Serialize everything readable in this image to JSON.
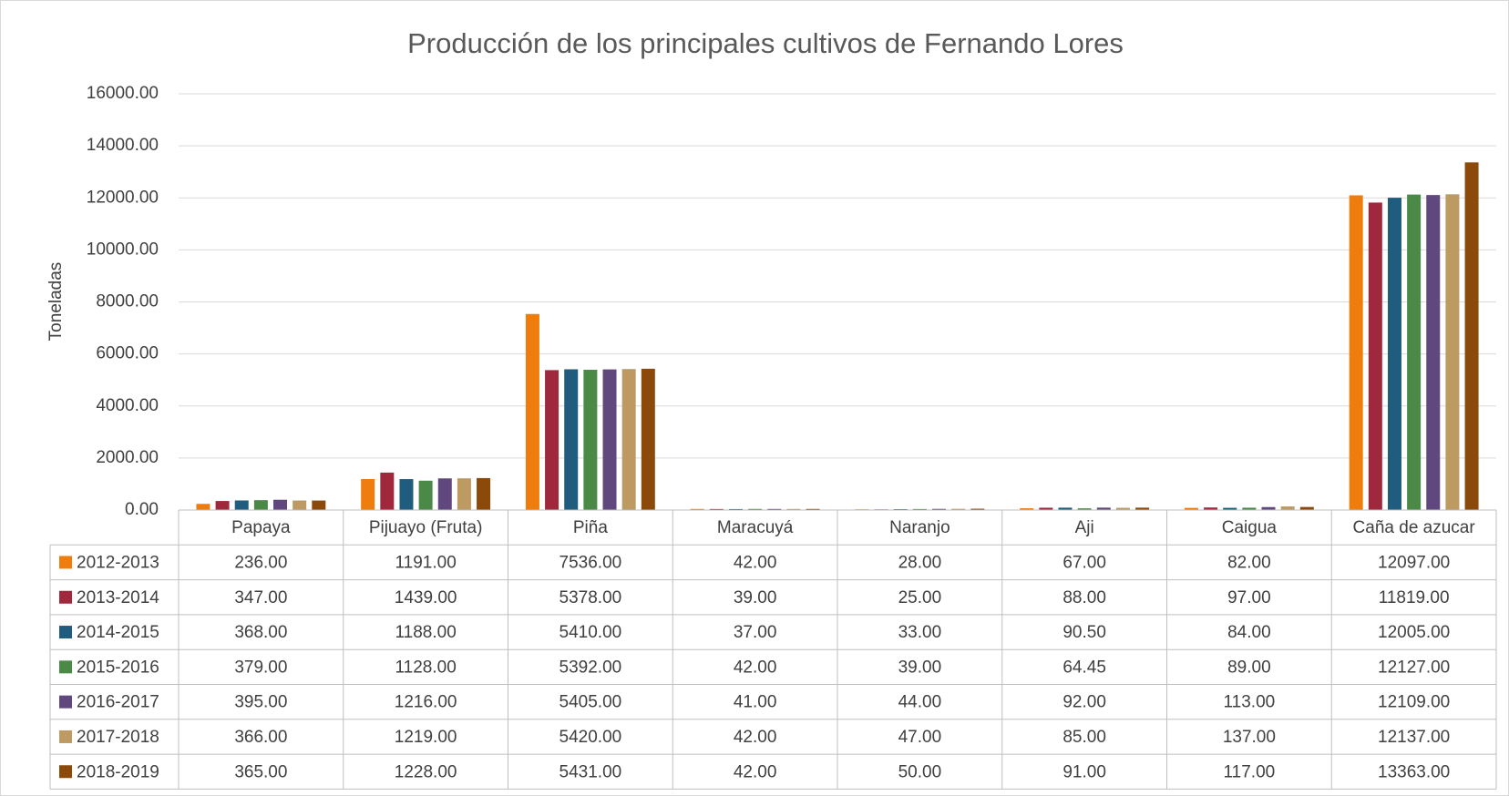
{
  "chart_data": {
    "type": "bar",
    "title": "Producción de los principales cultivos de Fernando Lores",
    "y_label": "Toneladas",
    "categories": [
      "Papaya",
      "Pijuayo (Fruta)",
      "Piña",
      "Maracuyá",
      "Naranjo",
      "Aji",
      "Caigua",
      "Caña de azucar"
    ],
    "ylim": [
      0,
      16000
    ],
    "yticks": [
      {
        "value": 0,
        "label": "0.00"
      },
      {
        "value": 2000,
        "label": "2000.00"
      },
      {
        "value": 4000,
        "label": "4000.00"
      },
      {
        "value": 6000,
        "label": "6000.00"
      },
      {
        "value": 8000,
        "label": "8000.00"
      },
      {
        "value": 10000,
        "label": "10000.00"
      },
      {
        "value": 12000,
        "label": "12000.00"
      },
      {
        "value": 14000,
        "label": "14000.00"
      },
      {
        "value": 16000,
        "label": "16000.00"
      }
    ],
    "grid": true,
    "series": [
      {
        "name": "2012-2013",
        "color": "#ee7d0e",
        "values": [
          236,
          1191,
          7536,
          42,
          28,
          67,
          82,
          12097
        ],
        "value_labels": [
          "236.00",
          "1191.00",
          "7536.00",
          "42.00",
          "28.00",
          "67.00",
          "82.00",
          "12097.00"
        ]
      },
      {
        "name": "2013-2014",
        "color": "#a0283c",
        "values": [
          347,
          1439,
          5378,
          39,
          25,
          88,
          97,
          11819
        ],
        "value_labels": [
          "347.00",
          "1439.00",
          "5378.00",
          "39.00",
          "25.00",
          "88.00",
          "97.00",
          "11819.00"
        ]
      },
      {
        "name": "2014-2015",
        "color": "#1f5c7e",
        "values": [
          368,
          1188,
          5410,
          37,
          33,
          90.5,
          84,
          12005
        ],
        "value_labels": [
          "368.00",
          "1188.00",
          "5410.00",
          "37.00",
          "33.00",
          "90.50",
          "84.00",
          "12005.00"
        ]
      },
      {
        "name": "2015-2016",
        "color": "#4a8a46",
        "values": [
          379,
          1128,
          5392,
          42,
          39,
          64.45,
          89,
          12127
        ],
        "value_labels": [
          "379.00",
          "1128.00",
          "5392.00",
          "42.00",
          "39.00",
          "64.45",
          "89.00",
          "12127.00"
        ]
      },
      {
        "name": "2016-2017",
        "color": "#60477d",
        "values": [
          395,
          1216,
          5405,
          41,
          44,
          92,
          113,
          12109
        ],
        "value_labels": [
          "395.00",
          "1216.00",
          "5405.00",
          "41.00",
          "44.00",
          "92.00",
          "113.00",
          "12109.00"
        ]
      },
      {
        "name": "2017-2018",
        "color": "#bc9a62",
        "values": [
          366,
          1219,
          5420,
          42,
          47,
          85,
          137,
          12137
        ],
        "value_labels": [
          "366.00",
          "1219.00",
          "5420.00",
          "42.00",
          "47.00",
          "85.00",
          "137.00",
          "12137.00"
        ]
      },
      {
        "name": "2018-2019",
        "color": "#8b4a0a",
        "values": [
          365,
          1228,
          5431,
          42,
          50,
          91,
          117,
          13363
        ],
        "value_labels": [
          "365.00",
          "1228.00",
          "5431.00",
          "42.00",
          "50.00",
          "91.00",
          "117.00",
          "13363.00"
        ]
      }
    ]
  }
}
